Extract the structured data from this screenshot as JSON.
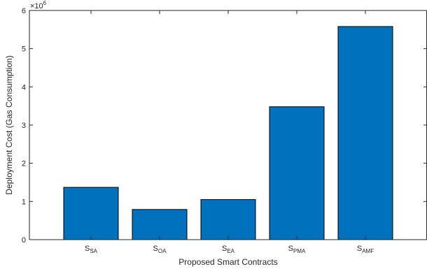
{
  "chart_data": {
    "type": "bar",
    "title": "",
    "xlabel": "Proposed Smart Contracts",
    "ylabel": "Deployment Cost (Gas Consumption)",
    "exponent_label": {
      "base": "×10",
      "power": "6"
    },
    "categories": [
      {
        "main": "S",
        "sub": "SA"
      },
      {
        "main": "S",
        "sub": "OA"
      },
      {
        "main": "S",
        "sub": "EA"
      },
      {
        "main": "S",
        "sub": "PMA"
      },
      {
        "main": "S",
        "sub": "AMF"
      }
    ],
    "values": [
      1.37,
      0.79,
      1.05,
      3.48,
      5.58
    ],
    "value_multiplier": 1000000,
    "ylim": [
      0,
      6
    ],
    "yticks": [
      "0",
      "1",
      "2",
      "3",
      "4",
      "5",
      "6"
    ],
    "grid": false,
    "bar_color": "#0072BD",
    "bar_edge_color": "#000000"
  }
}
